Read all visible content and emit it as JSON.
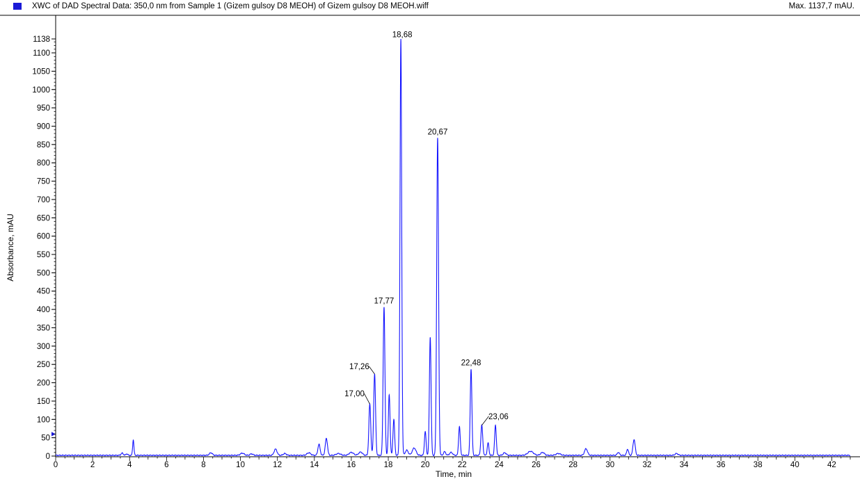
{
  "header": {
    "title": "XWC of DAD Spectral Data: 350,0 nm from Sample 1 (Gizem gulsoy D8 MEOH) of Gizem gulsoy D8 MEOH.wiff",
    "max_label": "Max. 1137,7 mAU."
  },
  "colors": {
    "trace": "#1414ff",
    "swatch": "#1a1ad6",
    "axis": "#000000"
  },
  "chart_data": {
    "type": "line",
    "title": "XWC of DAD Spectral Data: 350,0 nm from Sample 1 (Gizem gulsoy D8 MEOH) of Gizem gulsoy D8 MEOH.wiff",
    "xlabel": "Time, min",
    "ylabel": "Absorbance, mAU",
    "xlim": [
      0,
      43
    ],
    "ylim": [
      0,
      1138
    ],
    "x_ticks": [
      "0",
      "2",
      "4",
      "6",
      "8",
      "10",
      "12",
      "14",
      "16",
      "18",
      "20",
      "22",
      "24",
      "26",
      "28",
      "30",
      "32",
      "34",
      "36",
      "38",
      "40",
      "42"
    ],
    "y_ticks": [
      "0",
      "50",
      "100",
      "150",
      "200",
      "250",
      "300",
      "350",
      "400",
      "450",
      "500",
      "550",
      "600",
      "650",
      "700",
      "750",
      "800",
      "850",
      "900",
      "950",
      "1000",
      "1050",
      "1100",
      "1138"
    ],
    "baseline": 2,
    "peaks": [
      {
        "x": 3.6,
        "y": 6,
        "w": 0.06
      },
      {
        "x": 3.85,
        "y": 4,
        "w": 0.05
      },
      {
        "x": 4.2,
        "y": 42,
        "w": 0.035
      },
      {
        "x": 8.4,
        "y": 7,
        "w": 0.08
      },
      {
        "x": 10.1,
        "y": 6,
        "w": 0.1
      },
      {
        "x": 10.6,
        "y": 4,
        "w": 0.08
      },
      {
        "x": 11.9,
        "y": 17,
        "w": 0.08
      },
      {
        "x": 12.4,
        "y": 5,
        "w": 0.08
      },
      {
        "x": 13.7,
        "y": 7,
        "w": 0.1
      },
      {
        "x": 14.25,
        "y": 30,
        "w": 0.06
      },
      {
        "x": 14.65,
        "y": 46,
        "w": 0.06
      },
      {
        "x": 15.3,
        "y": 5,
        "w": 0.12
      },
      {
        "x": 16.0,
        "y": 8,
        "w": 0.12
      },
      {
        "x": 16.5,
        "y": 9,
        "w": 0.1
      },
      {
        "x": 17.0,
        "y": 140,
        "w": 0.05
      },
      {
        "x": 17.26,
        "y": 222,
        "w": 0.05
      },
      {
        "x": 17.77,
        "y": 405,
        "w": 0.048
      },
      {
        "x": 18.05,
        "y": 166,
        "w": 0.045
      },
      {
        "x": 18.3,
        "y": 98,
        "w": 0.045
      },
      {
        "x": 18.68,
        "y": 1135,
        "w": 0.045
      },
      {
        "x": 19.0,
        "y": 14,
        "w": 0.08
      },
      {
        "x": 19.4,
        "y": 20,
        "w": 0.1
      },
      {
        "x": 20.0,
        "y": 65,
        "w": 0.045
      },
      {
        "x": 20.27,
        "y": 322,
        "w": 0.045
      },
      {
        "x": 20.67,
        "y": 866,
        "w": 0.05
      },
      {
        "x": 21.05,
        "y": 10,
        "w": 0.06
      },
      {
        "x": 21.4,
        "y": 8,
        "w": 0.08
      },
      {
        "x": 21.85,
        "y": 78,
        "w": 0.045
      },
      {
        "x": 22.48,
        "y": 236,
        "w": 0.045
      },
      {
        "x": 23.06,
        "y": 82,
        "w": 0.05
      },
      {
        "x": 23.4,
        "y": 34,
        "w": 0.045
      },
      {
        "x": 23.8,
        "y": 82,
        "w": 0.045
      },
      {
        "x": 24.3,
        "y": 7,
        "w": 0.08
      },
      {
        "x": 25.7,
        "y": 11,
        "w": 0.15
      },
      {
        "x": 26.35,
        "y": 8,
        "w": 0.1
      },
      {
        "x": 27.2,
        "y": 5,
        "w": 0.12
      },
      {
        "x": 28.7,
        "y": 18,
        "w": 0.08
      },
      {
        "x": 30.45,
        "y": 8,
        "w": 0.06
      },
      {
        "x": 30.95,
        "y": 17,
        "w": 0.05
      },
      {
        "x": 31.3,
        "y": 43,
        "w": 0.06
      },
      {
        "x": 33.6,
        "y": 5,
        "w": 0.08
      }
    ],
    "annotations": [
      {
        "x": 17.0,
        "y": 140,
        "text": "17,00"
      },
      {
        "x": 17.26,
        "y": 222,
        "text": "17,26"
      },
      {
        "x": 17.77,
        "y": 405,
        "text": "17,77"
      },
      {
        "x": 18.68,
        "y": 1135,
        "text": "18,68"
      },
      {
        "x": 20.67,
        "y": 866,
        "text": "20,67"
      },
      {
        "x": 22.48,
        "y": 236,
        "text": "22,48"
      },
      {
        "x": 23.06,
        "y": 82,
        "text": "23,06"
      }
    ]
  }
}
